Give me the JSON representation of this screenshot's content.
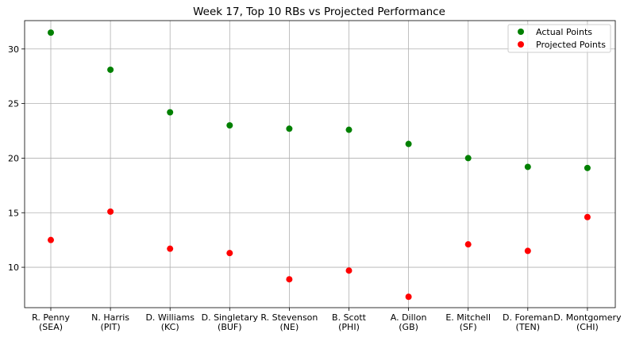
{
  "chart_data": {
    "type": "scatter",
    "title": "Week 17, Top 10 RBs vs Projected Performance",
    "xlabel": "",
    "ylabel": "",
    "categories": [
      [
        "R. Penny",
        "(SEA)"
      ],
      [
        "N. Harris",
        "(PIT)"
      ],
      [
        "D. Williams",
        "(KC)"
      ],
      [
        "D. Singletary",
        "(BUF)"
      ],
      [
        "R. Stevenson",
        "(NE)"
      ],
      [
        "B. Scott",
        "(PHI)"
      ],
      [
        "A. Dillon",
        "(GB)"
      ],
      [
        "E. Mitchell",
        "(SF)"
      ],
      [
        "D. Foreman",
        "(TEN)"
      ],
      [
        "D. Montgomery",
        "(CHI)"
      ]
    ],
    "series": [
      {
        "name": "Actual Points",
        "color": "#008000",
        "values": [
          31.5,
          28.1,
          24.2,
          23.0,
          22.7,
          22.6,
          21.3,
          20.0,
          19.2,
          19.1
        ]
      },
      {
        "name": "Projected Points",
        "color": "#ff0000",
        "values": [
          12.5,
          15.1,
          11.7,
          11.3,
          8.9,
          9.7,
          7.3,
          12.1,
          11.5,
          14.6
        ]
      }
    ],
    "ylim": [
      6.3,
      32.6
    ],
    "yticks": [
      10,
      15,
      20,
      25,
      30
    ],
    "grid": true,
    "legend": "upper right"
  }
}
